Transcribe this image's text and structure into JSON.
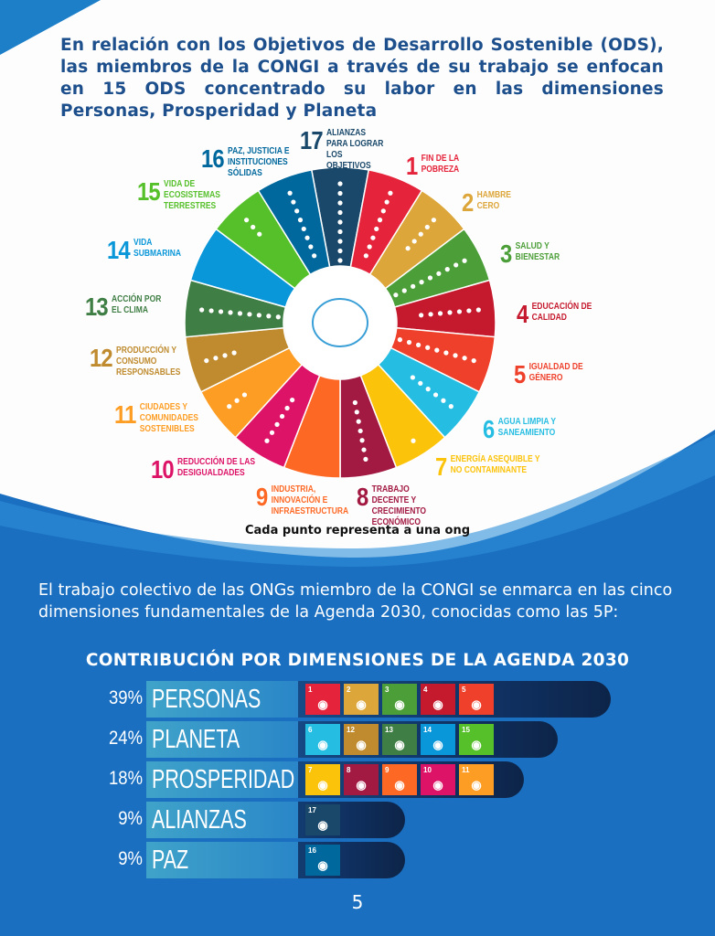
{
  "intro": "En relación con los Objetivos de Desarrollo Sostenible (ODS), las miembros de la CONGI a través de su trabajo se enfocan en 15 ODS concentrado su labor en las dimensiones Personas, Prosperidad y Planeta",
  "goals": [
    {
      "n": "1",
      "label": "Fin de la pobreza",
      "color": "#E5243B",
      "dots": 8
    },
    {
      "n": "2",
      "label": "Hambre cero",
      "color": "#DDA63A",
      "dots": 5
    },
    {
      "n": "3",
      "label": "Salud y bienestar",
      "color": "#4C9F38",
      "dots": 9
    },
    {
      "n": "4",
      "label": "Educación de calidad",
      "color": "#C5192D",
      "dots": 7
    },
    {
      "n": "5",
      "label": "Igualdad de género",
      "color": "#EF402B",
      "dots": 10
    },
    {
      "n": "6",
      "label": "Agua limpia y saneamiento",
      "color": "#26BDE2",
      "dots": 6
    },
    {
      "n": "7",
      "label": "Energía asequible y no contaminante",
      "color": "#FCC30B",
      "dots": 1
    },
    {
      "n": "8",
      "label": "Trabajo decente y crecimiento económico",
      "color": "#A21942",
      "dots": 7
    },
    {
      "n": "9",
      "label": "Industria, innovación e infraestructura",
      "color": "#FD6925",
      "dots": 0
    },
    {
      "n": "10",
      "label": "Reducción de las desigualdades",
      "color": "#DD1367",
      "dots": 6
    },
    {
      "n": "11",
      "label": "Ciudades y comunidades sostenibles",
      "color": "#FD9D24",
      "dots": 3
    },
    {
      "n": "12",
      "label": "Producción y consumo responsables",
      "color": "#BF8B2E",
      "dots": 4
    },
    {
      "n": "13",
      "label": "Acción por el clima",
      "color": "#3F7E44",
      "dots": 9
    },
    {
      "n": "14",
      "label": "Vida submarina",
      "color": "#0A97D9",
      "dots": 0
    },
    {
      "n": "15",
      "label": "Vida de ecosistemas terrestres",
      "color": "#56C02B",
      "dots": 3
    },
    {
      "n": "16",
      "label": "Paz, justicia e instituciones sólidas",
      "color": "#00689D",
      "dots": 8
    },
    {
      "n": "17",
      "label": "Alianzas para lograr los objetivos",
      "color": "#19486A",
      "dots": 9
    }
  ],
  "note": "Cada punto representa a una ong",
  "paragraph": "El trabajo colectivo de las ONGs miembro de la CONGI se enmarca en las cinco dimensiones fundamentales de la Agenda 2030, conocidas como las 5P:",
  "heading": "CONTRIBUCIÓN POR DIMENSIONES DE LA AGENDA 2030",
  "dimensions": [
    {
      "pct": "39%",
      "value": 39,
      "name": "PERSONAS",
      "goals": [
        "1",
        "2",
        "3",
        "4",
        "5"
      ]
    },
    {
      "pct": "24%",
      "value": 24,
      "name": "PLANETA",
      "goals": [
        "6",
        "12",
        "13",
        "14",
        "15"
      ]
    },
    {
      "pct": "18%",
      "value": 18,
      "name": "PROSPERIDAD",
      "goals": [
        "7",
        "8",
        "9",
        "10",
        "11"
      ]
    },
    {
      "pct": "9%",
      "value": 9,
      "name": "ALIANZAS",
      "goals": [
        "17"
      ]
    },
    {
      "pct": "9%",
      "value": 9,
      "name": "PAZ",
      "goals": [
        "16"
      ]
    }
  ],
  "page_number": "5"
}
